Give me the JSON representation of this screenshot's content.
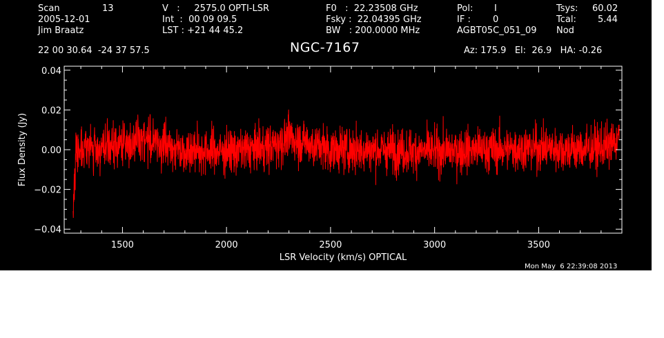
{
  "header": {
    "scan": {
      "label": "Scan",
      "value": "13"
    },
    "date": "2005-12-01",
    "observer": "Jim Braatz",
    "velocity": "V   :     2575.0 OPTI-LSR",
    "integration": "Int  :  00 09 09.5",
    "lst": "LST : +21 44 45.2",
    "f0": "F0   :  22.23508 GHz",
    "fsky": "Fsky :  22.04395 GHz",
    "bw": "BW   : 200.0000 MHz",
    "pol": {
      "label": "Pol:",
      "value": "I"
    },
    "if": {
      "label": "IF :",
      "value": "0"
    },
    "project": "AGBT05C_051_09",
    "tsys": {
      "label": "Tsys:",
      "value": "60.02"
    },
    "tcal": {
      "label": "Tcal:",
      "value": "5.44"
    },
    "mode": "Nod",
    "coords": "22 00 30.64  -24 37 57.5",
    "source": "NGC-7167",
    "pointing": "Az: 175.9   El:  26.9   HA: -0.26"
  },
  "timestamp": "Mon May  6 22:39:08 2013",
  "colors": {
    "background": "#000000",
    "axes": "#ffffff",
    "trace": "#ff0000"
  },
  "chart_data": {
    "type": "line",
    "title": "NGC-7167",
    "xlabel": "LSR Velocity (km/s) OPTICAL",
    "ylabel": "Flux Density (Jy)",
    "xlim": [
      1220,
      3900
    ],
    "ylim": [
      -0.042,
      0.042
    ],
    "data_x_range": [
      1263,
      3887
    ],
    "xticks": [
      1500,
      2000,
      2500,
      3000,
      3500
    ],
    "xtick_labels": [
      "1500",
      "2000",
      "2500",
      "3000",
      "3500"
    ],
    "yticks": [
      -0.04,
      -0.02,
      0.0,
      0.02,
      0.04
    ],
    "ytick_labels": [
      "−0.04",
      "−0.02",
      "0.00",
      "0.02",
      "0.04"
    ],
    "grid": false,
    "series": [
      {
        "noise_rms_jy": 0.008,
        "x": [
          1263,
          1275,
          1300,
          1400,
          1500,
          1550,
          1600,
          1700,
          1800,
          2000,
          2200,
          2300,
          2500,
          2700,
          3000,
          3200,
          3300,
          3500,
          3700,
          3850,
          3887
        ],
        "baseline": [
          -0.028,
          -0.002,
          0.002,
          0.0,
          0.003,
          0.004,
          0.006,
          0.002,
          0.0,
          -0.001,
          0.001,
          0.006,
          0.0,
          0.0,
          -0.001,
          0.0,
          0.0,
          0.001,
          0.0,
          0.002,
          0.006
        ]
      }
    ]
  }
}
